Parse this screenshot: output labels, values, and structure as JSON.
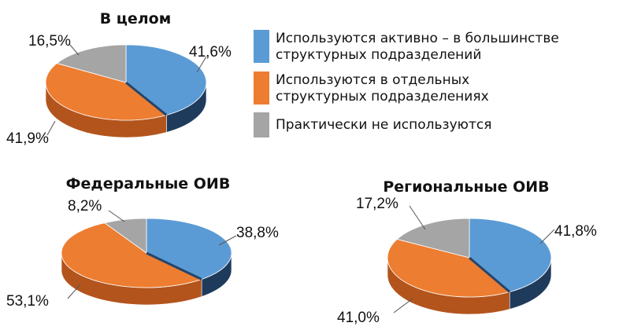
{
  "chart_data": [
    {
      "type": "pie",
      "title": "В целом",
      "categories": [
        "Используются активно – в большинстве структурных подразделений",
        "Используются в отдельных структурных подразделениях",
        "Практически не используются"
      ],
      "values": [
        41.6,
        41.9,
        16.5
      ],
      "labels": [
        "41,6%",
        "41,9%",
        "16,5%"
      ]
    },
    {
      "type": "pie",
      "title": "Федеральные ОИВ",
      "categories": [
        "Используются активно – в большинстве структурных подразделений",
        "Используются в отдельных структурных подразделениях",
        "Практически не используются"
      ],
      "values": [
        38.8,
        53.1,
        8.2
      ],
      "labels": [
        "38,8%",
        "53,1%",
        "8,2%"
      ]
    },
    {
      "type": "pie",
      "title": "Региональные ОИВ",
      "categories": [
        "Используются активно – в большинстве структурных подразделений",
        "Используются в отдельных структурных подразделениях",
        "Практически не используются"
      ],
      "values": [
        41.8,
        41.0,
        17.2
      ],
      "labels": [
        "41,8%",
        "41,0%",
        "17,2%"
      ]
    }
  ],
  "legend": {
    "items": [
      {
        "lines": [
          "Используются активно – в большинстве",
          "структурных подразделений"
        ],
        "color": "#5b9bd5"
      },
      {
        "lines": [
          "Используются в отдельных",
          "структурных подразделениях"
        ],
        "color": "#ed7d31"
      },
      {
        "lines": [
          "Практически не используются"
        ],
        "color": "#a5a5a5"
      }
    ]
  },
  "colors": {
    "blue": "#5b9bd5",
    "blue_side": "#1f3b5c",
    "orange": "#ed7d31",
    "orange_side": "#b3541d",
    "gray": "#a5a5a5",
    "gray_side": "#6f6f6f"
  }
}
